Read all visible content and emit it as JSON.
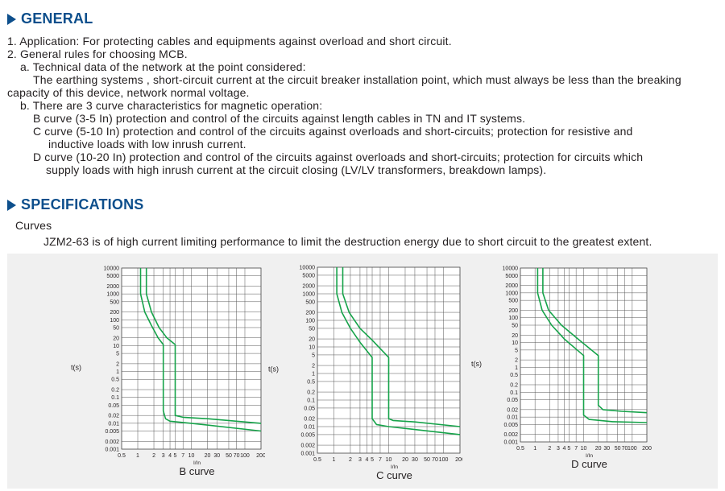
{
  "general": {
    "title": "GENERAL",
    "lines": [
      "1.  Application: For protecting cables and equipments against overload and short circuit.",
      "2. General rules for choosing MCB.",
      "a. Technical data of the network at the point considered:",
      "The earthing systems , short-circuit current at the circuit breaker installation point, which must always be less than  the breaking",
      "capacity of this device, network normal voltage.",
      "b. There are 3 curve characteristics for magnetic operation:",
      "B  curve (3-5 In) protection and control of the circuits against length cables in TN and IT systems.",
      "C  curve (5-10 In) protection and control of the circuits against overloads and short-circuits; protection for resistive and",
      "inductive loads with low inrush current.",
      "D  curve (10-20 In) protection and control of the circuits against overloads and short-circuits; protection for circuits which",
      "supply loads with high inrush current at the circuit closing (LV/LV transformers, breakdown lamps)."
    ]
  },
  "specifications": {
    "title": "SPECIFICATIONS",
    "subtitle": "Curves",
    "description": "JZM2-63 is of high current limiting performance to limit the destruction energy due to short circuit to the greatest extent."
  },
  "chart_data": [
    {
      "type": "line",
      "title": "B curve",
      "xlabel": "I/In",
      "ylabel": "t(s)",
      "x_scale": "log",
      "y_scale": "log",
      "x_ticks": [
        "0.5",
        "1",
        "2",
        "3",
        "4",
        "5",
        "7",
        "10",
        "20",
        "30",
        "50",
        "70",
        "100",
        "200"
      ],
      "y_ticks": [
        "10000",
        "5000",
        "2000",
        "1000",
        "500",
        "200",
        "100",
        "50",
        "20",
        "10",
        "5",
        "2",
        "1",
        "0.5",
        "0.2",
        "0.1",
        "0.05",
        "0.02",
        "0.01",
        "0.005",
        "0.002",
        "0.001"
      ],
      "xlim": [
        0.5,
        200
      ],
      "ylim": [
        0.001,
        10000
      ],
      "series": [
        {
          "values": [
            [
              1.13,
              10000
            ],
            [
              1.13,
              1000
            ],
            [
              1.35,
              200
            ],
            [
              1.8,
              60
            ],
            [
              2.4,
              20
            ],
            [
              3,
              11
            ],
            [
              3,
              2
            ],
            [
              3,
              0.5
            ],
            [
              3,
              0.1
            ],
            [
              3,
              0.03
            ],
            [
              3.3,
              0.015
            ],
            [
              4,
              0.012
            ],
            [
              10,
              0.01
            ],
            [
              200,
              0.005
            ]
          ]
        },
        {
          "values": [
            [
              1.45,
              10000
            ],
            [
              1.45,
              1000
            ],
            [
              1.8,
              200
            ],
            [
              2.5,
              50
            ],
            [
              3.5,
              20
            ],
            [
              5,
              11
            ],
            [
              5,
              2
            ],
            [
              5,
              0.5
            ],
            [
              5,
              0.1
            ],
            [
              5,
              0.02
            ],
            [
              7,
              0.017
            ],
            [
              20,
              0.015
            ],
            [
              200,
              0.01
            ]
          ]
        }
      ]
    },
    {
      "type": "line",
      "title": "C curve",
      "xlabel": "I/In",
      "ylabel": "t(s)",
      "x_scale": "log",
      "y_scale": "log",
      "x_ticks": [
        "0.5",
        "1",
        "2",
        "3",
        "4",
        "5",
        "7",
        "10",
        "20",
        "30",
        "50",
        "70",
        "100",
        "200"
      ],
      "y_ticks": [
        "10000",
        "5000",
        "2000",
        "1000",
        "500",
        "200",
        "100",
        "50",
        "20",
        "10",
        "5",
        "2",
        "1",
        "0.5",
        "0.2",
        "0.1",
        "0.05",
        "0.02",
        "0.01",
        "0.005",
        "0.002",
        "0.001"
      ],
      "xlim": [
        0.5,
        200
      ],
      "ylim": [
        0.001,
        10000
      ],
      "series": [
        {
          "values": [
            [
              1.13,
              10000
            ],
            [
              1.13,
              1000
            ],
            [
              1.4,
              200
            ],
            [
              2,
              50
            ],
            [
              3,
              15
            ],
            [
              5,
              4
            ],
            [
              5,
              1
            ],
            [
              5,
              0.1
            ],
            [
              5,
              0.02
            ],
            [
              6,
              0.012
            ],
            [
              10,
              0.01
            ],
            [
              200,
              0.005
            ]
          ]
        },
        {
          "values": [
            [
              1.45,
              10000
            ],
            [
              1.45,
              1000
            ],
            [
              1.9,
              200
            ],
            [
              3,
              50
            ],
            [
              5,
              18
            ],
            [
              10,
              4
            ],
            [
              10,
              1
            ],
            [
              10,
              0.1
            ],
            [
              10,
              0.02
            ],
            [
              12,
              0.017
            ],
            [
              30,
              0.015
            ],
            [
              200,
              0.01
            ]
          ]
        }
      ]
    },
    {
      "type": "line",
      "title": "D curve",
      "xlabel": "I/In",
      "ylabel": "t(s)",
      "x_scale": "log",
      "y_scale": "log",
      "x_ticks": [
        "0.5",
        "1",
        "2",
        "3",
        "4",
        "5",
        "7",
        "10",
        "20",
        "30",
        "50",
        "70",
        "100",
        "200"
      ],
      "y_ticks": [
        "10000",
        "5000",
        "2000",
        "1000",
        "500",
        "200",
        "100",
        "50",
        "20",
        "10",
        "5",
        "2",
        "1",
        "0.5",
        "0.2",
        "0.1",
        "0.05",
        "0.02",
        "0.01",
        "0.005",
        "0.002",
        "0.001"
      ],
      "xlim": [
        0.5,
        200
      ],
      "ylim": [
        0.001,
        10000
      ],
      "series": [
        {
          "values": [
            [
              1.13,
              10000
            ],
            [
              1.13,
              1000
            ],
            [
              1.4,
              200
            ],
            [
              2.2,
              50
            ],
            [
              4,
              14
            ],
            [
              10,
              3
            ],
            [
              10,
              1
            ],
            [
              10,
              0.1
            ],
            [
              10,
              0.012
            ],
            [
              13,
              0.008
            ],
            [
              40,
              0.0065
            ],
            [
              200,
              0.006
            ]
          ]
        },
        {
          "values": [
            [
              1.45,
              10000
            ],
            [
              1.45,
              1000
            ],
            [
              1.9,
              200
            ],
            [
              3.5,
              50
            ],
            [
              8,
              13
            ],
            [
              20,
              3
            ],
            [
              20,
              1
            ],
            [
              20,
              0.1
            ],
            [
              20,
              0.03
            ],
            [
              25,
              0.02
            ],
            [
              60,
              0.017
            ],
            [
              200,
              0.015
            ]
          ]
        }
      ]
    }
  ],
  "colors": {
    "heading": "#0d4f8c",
    "curve": "#16a34a",
    "grid": "#555555",
    "panel": "#f0f0f0"
  }
}
